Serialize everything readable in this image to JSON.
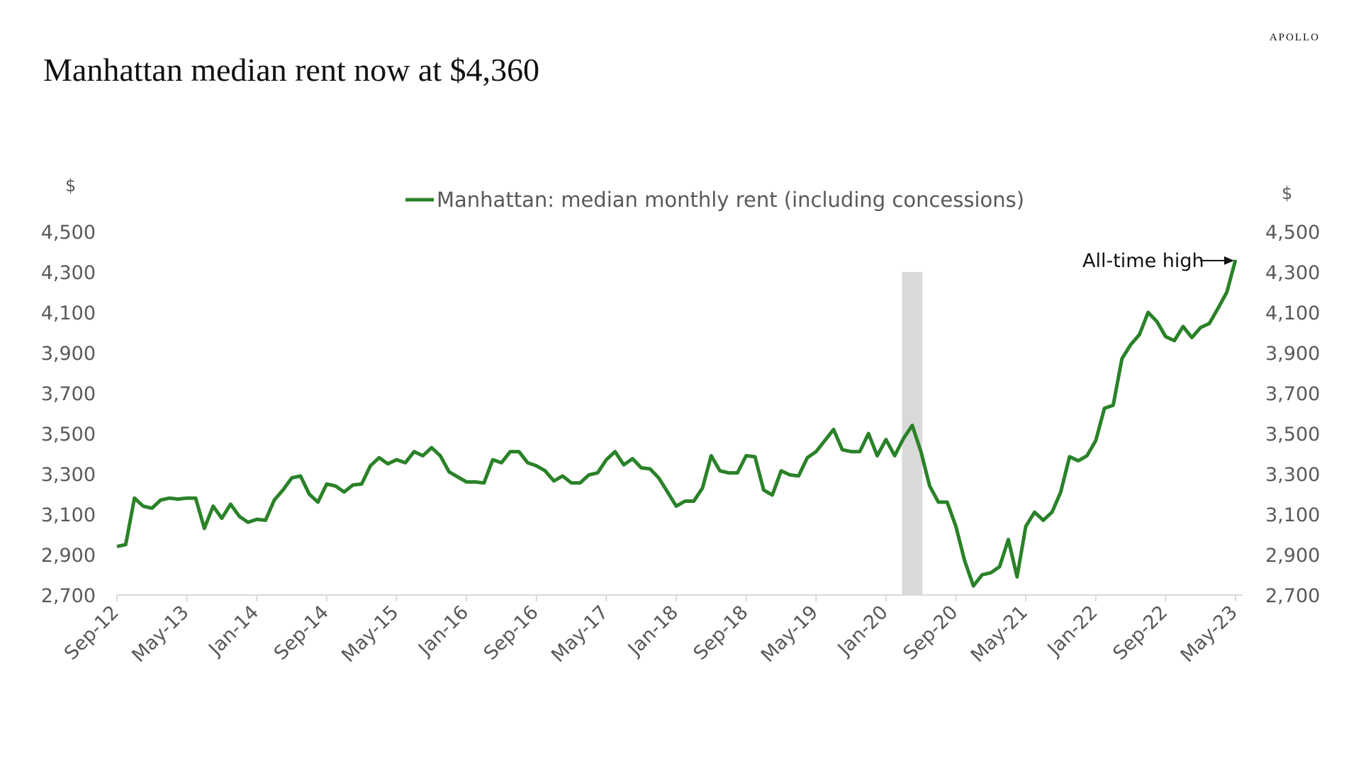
{
  "brand": "APOLLO",
  "title": "Manhattan median rent now at $4,360",
  "chart_data": {
    "type": "line",
    "title": "Manhattan median rent now at $4,360",
    "left_axis_unit": "$",
    "right_axis_unit": "$",
    "ylim": [
      2700,
      4500
    ],
    "yticks": [
      "2,700",
      "2,900",
      "3,100",
      "3,300",
      "3,500",
      "3,700",
      "3,900",
      "4,100",
      "4,300",
      "4,500"
    ],
    "ytick_values": [
      2700,
      2900,
      3100,
      3300,
      3500,
      3700,
      3900,
      4100,
      4300,
      4500
    ],
    "x_start": "Sep-12",
    "x_end": "May-23",
    "x_frequency": "monthly",
    "xticks": [
      "Sep-12",
      "May-13",
      "Jan-14",
      "Sep-14",
      "May-15",
      "Jan-16",
      "Sep-16",
      "May-17",
      "Jan-18",
      "Sep-18",
      "May-19",
      "Jan-20",
      "Sep-20",
      "May-21",
      "Jan-22",
      "Sep-22",
      "May-23"
    ],
    "grid": false,
    "legend_position": "top-center",
    "recession_shading": {
      "start": "Mar-20",
      "end": "May-20",
      "color": "#d9d9d9"
    },
    "annotation": {
      "text": "All-time high",
      "at": "May-23",
      "value": 4360
    },
    "series": [
      {
        "name": "Manhattan: median monthly rent (including concessions)",
        "color": "#2a8228",
        "values": [
          2940,
          2950,
          3180,
          3140,
          3130,
          3170,
          3180,
          3175,
          3180,
          3180,
          3030,
          3140,
          3080,
          3150,
          3090,
          3060,
          3075,
          3070,
          3170,
          3220,
          3280,
          3290,
          3200,
          3160,
          3250,
          3240,
          3210,
          3245,
          3250,
          3340,
          3380,
          3350,
          3370,
          3355,
          3410,
          3390,
          3430,
          3390,
          3310,
          3285,
          3260,
          3260,
          3255,
          3370,
          3355,
          3410,
          3410,
          3355,
          3340,
          3315,
          3265,
          3290,
          3255,
          3255,
          3295,
          3305,
          3370,
          3410,
          3345,
          3375,
          3330,
          3325,
          3280,
          3210,
          3140,
          3165,
          3165,
          3230,
          3390,
          3315,
          3305,
          3305,
          3390,
          3385,
          3220,
          3195,
          3315,
          3295,
          3290,
          3380,
          3410,
          3465,
          3520,
          3420,
          3410,
          3410,
          3500,
          3390,
          3470,
          3390,
          3475,
          3540,
          3410,
          3240,
          3160,
          3160,
          3040,
          2870,
          2745,
          2800,
          2810,
          2840,
          2975,
          2790,
          3040,
          3110,
          3070,
          3110,
          3210,
          3385,
          3365,
          3390,
          3465,
          3625,
          3640,
          3870,
          3940,
          3990,
          4100,
          4055,
          3980,
          3960,
          4030,
          3975,
          4025,
          4045,
          4120,
          4200,
          4360
        ]
      }
    ]
  }
}
